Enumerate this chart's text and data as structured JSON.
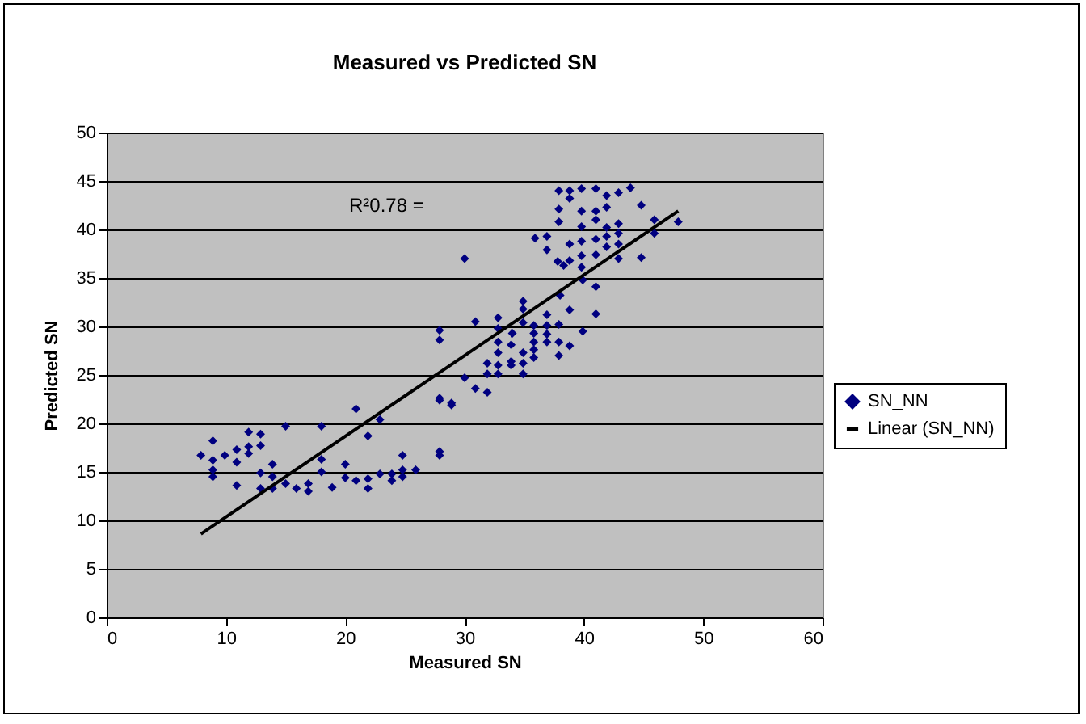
{
  "chart_data": {
    "type": "scatter",
    "title": "Measured vs Predicted SN",
    "xlabel": "Measured SN",
    "ylabel": "Predicted SN",
    "xlim": [
      0,
      60
    ],
    "xticks": [
      0,
      10,
      20,
      30,
      40,
      50,
      60
    ],
    "ylim": [
      0,
      50
    ],
    "yticks": [
      0,
      5,
      10,
      15,
      20,
      25,
      30,
      35,
      40,
      45,
      50
    ],
    "grid": "y",
    "legend": "right",
    "annotations": [
      "R²0.78 ="
    ],
    "series": [
      {
        "name": "SN_NN",
        "color": "#000080",
        "marker": "diamond",
        "x": [
          7.9,
          8.9,
          8.9,
          8.9,
          8.9,
          9.9,
          10.9,
          10.9,
          10.9,
          11.9,
          11.9,
          11.9,
          12.9,
          12.9,
          12.9,
          12.9,
          13.9,
          13.9,
          13.9,
          15.0,
          15.0,
          15.9,
          16.9,
          16.9,
          18.0,
          18.0,
          18.0,
          18.9,
          20.0,
          20.0,
          20.9,
          20.9,
          21.9,
          21.9,
          21.9,
          22.9,
          22.9,
          23.9,
          23.9,
          24.8,
          24.8,
          24.8,
          25.9,
          27.9,
          27.9,
          28.9,
          27.9,
          37.9,
          38.8,
          38.8,
          39.8,
          41.0,
          41.9,
          42.9,
          43.9,
          37.9,
          37.9,
          39.8,
          41.0,
          41.0,
          41.9,
          44.8,
          45.9,
          47.9,
          45.9,
          35.9,
          36.9,
          36.9,
          39.8,
          39.8,
          39.8,
          41.0,
          41.0,
          41.9,
          41.9,
          41.9,
          42.9,
          42.9,
          42.9,
          42.9,
          44.8,
          30.0,
          38.8,
          37.8,
          38.3,
          38.8,
          39.8,
          39.9,
          41.0,
          38.0,
          34.9,
          34.9,
          38.8,
          41.0,
          30.9,
          32.8,
          32.8,
          34.0,
          34.9,
          35.8,
          35.8,
          35.8,
          36.9,
          36.9,
          36.9,
          36.9,
          37.9,
          37.9,
          37.9,
          38.8,
          39.9,
          27.9,
          27.9,
          32.8,
          32.8,
          32.8,
          32.8,
          31.9,
          31.9,
          33.9,
          33.9,
          34.9,
          34.9,
          34.9,
          35.8,
          35.8,
          33.9,
          30.0,
          30.9,
          31.9,
          27.9,
          28.9
        ],
        "values": [
          16.7,
          18.2,
          16.2,
          15.2,
          14.5,
          16.7,
          17.3,
          16.0,
          13.6,
          19.1,
          17.6,
          16.9,
          18.9,
          17.7,
          14.9,
          13.3,
          15.8,
          14.5,
          13.3,
          19.7,
          13.8,
          13.3,
          13.8,
          13.0,
          19.7,
          16.3,
          15.0,
          13.4,
          15.8,
          14.4,
          21.5,
          14.1,
          18.7,
          14.3,
          13.3,
          20.4,
          14.8,
          14.1,
          14.8,
          16.7,
          15.2,
          14.5,
          15.2,
          22.4,
          16.7,
          21.9,
          17.1,
          44.0,
          44.0,
          43.2,
          44.2,
          44.2,
          43.5,
          43.8,
          44.3,
          42.1,
          40.8,
          41.9,
          41.9,
          41.0,
          42.3,
          42.5,
          41.0,
          40.8,
          39.6,
          39.1,
          39.3,
          37.9,
          40.3,
          38.8,
          37.3,
          39.0,
          37.4,
          40.2,
          39.3,
          38.2,
          40.6,
          39.6,
          38.5,
          37.0,
          37.1,
          37.0,
          38.5,
          36.7,
          36.3,
          36.8,
          36.1,
          34.8,
          34.1,
          33.2,
          32.6,
          31.8,
          31.7,
          31.3,
          30.5,
          30.9,
          29.8,
          29.3,
          30.4,
          30.1,
          29.3,
          28.4,
          31.2,
          30.1,
          29.2,
          28.4,
          30.2,
          28.4,
          27.0,
          28.0,
          29.5,
          29.6,
          28.6,
          28.4,
          27.3,
          26.0,
          25.1,
          26.2,
          25.1,
          28.1,
          26.4,
          27.3,
          26.2,
          25.1,
          27.6,
          26.8,
          26.0,
          24.7,
          23.6,
          23.2,
          22.6,
          22.1
        ]
      },
      {
        "name": "Linear (SN_NN)",
        "type": "line",
        "color": "#000000",
        "x": [
          7.9,
          47.9
        ],
        "values": [
          8.6,
          41.9
        ]
      }
    ]
  }
}
